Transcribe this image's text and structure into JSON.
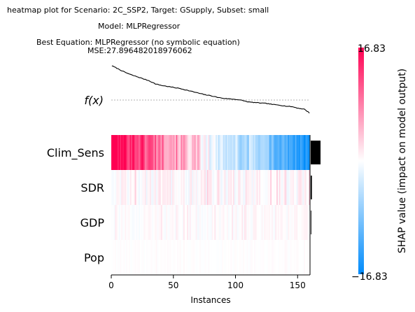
{
  "title_lines": [
    "heatmap plot for Scenario: 2C_SSP2, Target: GSupply, Subset: small",
    "Model: MLPRegressor",
    "Best Equation: MLPRegressor (no symbolic equation)",
    "MSE:27.896482018976062"
  ],
  "chart_data": {
    "type": "heatmap",
    "fx_label": "f(x)",
    "xlabel": "Instances",
    "x_ticks": [
      0,
      50,
      100,
      150
    ],
    "n_instances": 160,
    "features": [
      "Clim_Sens",
      "SDR",
      "GDP",
      "Pop"
    ],
    "feature_importance": [
      1.0,
      0.12,
      0.06,
      0.02
    ],
    "colorbar": {
      "max_label": "16.83",
      "min_label": "−16.83",
      "vmin": -16.83,
      "vmax": 16.83,
      "label": "SHAP value (impact on model output)",
      "colors": {
        "negative": "#008bfb",
        "neutral": "#ffffff",
        "positive": "#ff0052"
      }
    },
    "fx_curve_nodes": [
      [
        0,
        1.0
      ],
      [
        5,
        0.94
      ],
      [
        10,
        0.88
      ],
      [
        15,
        0.83
      ],
      [
        20,
        0.79
      ],
      [
        25,
        0.75
      ],
      [
        30,
        0.71
      ],
      [
        35,
        0.65
      ],
      [
        40,
        0.62
      ],
      [
        45,
        0.6
      ],
      [
        50,
        0.58
      ],
      [
        55,
        0.56
      ],
      [
        60,
        0.53
      ],
      [
        65,
        0.5
      ],
      [
        70,
        0.47
      ],
      [
        75,
        0.44
      ],
      [
        80,
        0.42
      ],
      [
        85,
        0.39
      ],
      [
        90,
        0.37
      ],
      [
        95,
        0.36
      ],
      [
        100,
        0.35
      ],
      [
        105,
        0.33
      ],
      [
        110,
        0.3
      ],
      [
        115,
        0.29
      ],
      [
        120,
        0.28
      ],
      [
        125,
        0.27
      ],
      [
        130,
        0.25
      ],
      [
        135,
        0.24
      ],
      [
        140,
        0.22
      ],
      [
        145,
        0.21
      ],
      [
        150,
        0.18
      ],
      [
        155,
        0.16
      ],
      [
        159,
        0.09
      ]
    ]
  }
}
